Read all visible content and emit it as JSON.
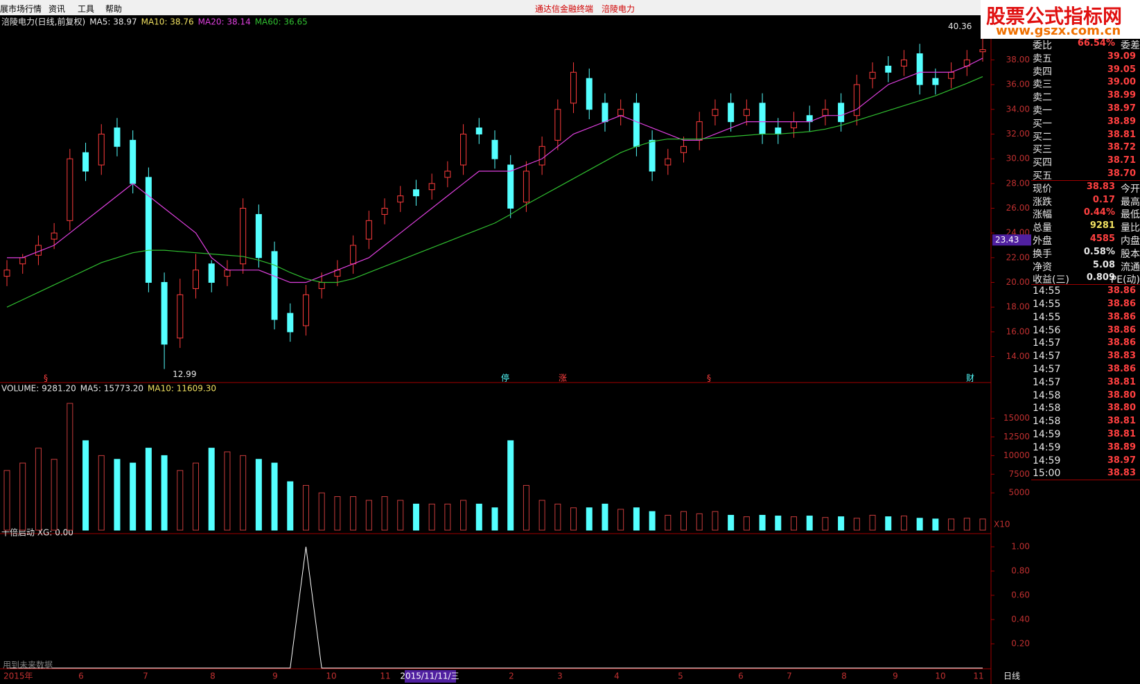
{
  "header": {
    "menu": [
      "展市场行情",
      "资讯",
      "工具",
      "帮助"
    ],
    "title": "通达信金融终端",
    "stock": "涪陵电力",
    "watermark": [
      "股票公式指标网",
      "www.gszx.com.cn"
    ]
  },
  "chart_data": [
    {
      "type": "candlestick",
      "name": "涪陵电力(日线,前复权)",
      "legend": [
        {
          "label": "MA5: 38.97",
          "color": "#e8e8e8"
        },
        {
          "label": "MA10: 38.76",
          "color": "#f0e060"
        },
        {
          "label": "MA20: 38.14",
          "color": "#e040e0"
        },
        {
          "label": "MA60: 36.65",
          "color": "#30c030"
        }
      ],
      "open": [
        20.5,
        21.5,
        22.2,
        23.5,
        25,
        30.5,
        29.5,
        32.5,
        31.5,
        28.5,
        20,
        15.5,
        19.5,
        21.5,
        20.5,
        21.5,
        25.5,
        22.5,
        17.5,
        16.5,
        19.5,
        20.5,
        21.5,
        23.5,
        25.5,
        26.5,
        27.5,
        27.5,
        28.5,
        29.5,
        32.5,
        31.5,
        29.5,
        26.5,
        29.5,
        31.5,
        34.5,
        36.5,
        34.5,
        33.5,
        34.5,
        31.5,
        29.5,
        30.5,
        31.5,
        33.5,
        34.5,
        33.5,
        34.5,
        32.5,
        32.5,
        33.5,
        33.5,
        34.5,
        33.5,
        36.5,
        37.5,
        37.5,
        38.5,
        36.5,
        36.5,
        37.5,
        38.66
      ],
      "high": [
        21.8,
        22.3,
        23.8,
        24.8,
        30.8,
        31.3,
        32.8,
        33.3,
        32.3,
        29.3,
        20.8,
        20.3,
        22.3,
        21.8,
        21.8,
        26.8,
        26.3,
        23.3,
        18.3,
        19.8,
        20.8,
        21.8,
        23.8,
        25.8,
        26.8,
        27.8,
        28.3,
        28.8,
        29.8,
        32.8,
        33.3,
        32.3,
        30.3,
        29.8,
        31.8,
        34.8,
        37.8,
        37.3,
        35.3,
        34.8,
        35.3,
        32.3,
        30.8,
        31.8,
        33.8,
        34.8,
        35.3,
        34.8,
        35.3,
        33.3,
        33.8,
        34.3,
        34.8,
        35.3,
        36.8,
        37.8,
        38.3,
        38.8,
        39.3,
        37.3,
        37.8,
        38.8,
        40.36
      ],
      "low": [
        19.7,
        20.7,
        21.4,
        22.7,
        24.2,
        28.2,
        28.7,
        30.2,
        27.2,
        19.2,
        12.99,
        14.7,
        18.7,
        19.2,
        19.7,
        20.7,
        21.2,
        16.2,
        15.2,
        15.7,
        18.7,
        19.7,
        20.7,
        22.7,
        24.7,
        25.7,
        26.2,
        26.7,
        27.7,
        28.7,
        31.2,
        29.2,
        25.2,
        25.7,
        28.7,
        30.7,
        33.7,
        33.2,
        32.2,
        32.7,
        30.2,
        28.2,
        28.7,
        29.7,
        30.7,
        32.7,
        32.2,
        32.7,
        31.2,
        31.2,
        31.7,
        32.2,
        32.7,
        32.2,
        32.7,
        35.7,
        36.2,
        36.7,
        35.2,
        35.2,
        35.7,
        36.7,
        37.86
      ],
      "close": [
        21,
        22,
        23,
        24,
        30,
        29,
        32,
        31,
        28,
        20,
        15,
        19,
        21,
        20,
        21,
        26,
        22,
        17,
        16,
        19,
        20,
        21,
        23,
        25,
        26,
        27,
        27,
        28,
        29,
        32,
        32,
        30,
        26,
        29,
        31,
        34,
        37,
        34,
        33,
        34,
        31,
        29,
        30,
        31,
        33,
        34,
        33,
        34,
        32,
        32,
        33,
        33,
        34,
        33,
        36,
        37,
        37,
        38,
        36,
        36,
        37,
        38,
        38.83
      ],
      "series": [
        {
          "color": "#e040e0",
          "values": [
            22,
            22,
            22.5,
            23,
            24,
            25,
            26,
            27,
            28,
            27,
            26,
            25,
            24,
            22,
            21,
            21,
            21,
            20.5,
            20,
            20,
            20.5,
            21,
            21.5,
            22,
            23,
            24,
            25,
            26,
            27,
            28,
            29,
            29,
            29,
            29.5,
            30,
            31,
            32,
            32.5,
            33,
            33.5,
            33,
            32.5,
            32,
            31.5,
            31.5,
            32,
            32.5,
            33,
            33,
            33,
            33,
            33,
            33.5,
            33.5,
            34,
            35,
            36,
            36.5,
            37,
            37,
            37,
            37.5,
            38.14
          ]
        },
        {
          "color": "#30c030",
          "values": [
            18,
            18.6,
            19.2,
            19.8,
            20.4,
            21,
            21.6,
            22,
            22.4,
            22.6,
            22.6,
            22.5,
            22.4,
            22.3,
            22.2,
            22.1,
            21.8,
            21.4,
            20.8,
            20.3,
            20,
            20,
            20.3,
            20.8,
            21.3,
            21.8,
            22.3,
            22.8,
            23.3,
            23.8,
            24.3,
            24.8,
            25.5,
            26.3,
            27,
            27.7,
            28.4,
            29.1,
            29.8,
            30.5,
            31,
            31.4,
            31.6,
            31.6,
            31.6,
            31.7,
            31.8,
            31.9,
            32,
            32,
            32.1,
            32.2,
            32.4,
            32.7,
            33.1,
            33.5,
            33.9,
            34.3,
            34.7,
            35.1,
            35.6,
            36.1,
            36.65
          ]
        }
      ],
      "annotations": [
        40.36,
        12.99
      ],
      "price_tag": 23.43,
      "markers": [
        "§",
        "停",
        "涨",
        "§",
        "财"
      ],
      "ylim": [
        11.9,
        41.5
      ],
      "yticks": [
        {
          "value": 14,
          "label": "14.00"
        },
        {
          "value": 16,
          "label": "16.00"
        },
        {
          "value": 18,
          "label": "18.00"
        },
        {
          "value": 20,
          "label": "20.00"
        },
        {
          "value": 22,
          "label": "22.00"
        },
        {
          "value": 24,
          "label": "24.00"
        },
        {
          "value": 26,
          "label": "26.00"
        },
        {
          "value": 28,
          "label": "28.00"
        },
        {
          "value": 30,
          "label": "30.00"
        },
        {
          "value": 32,
          "label": "32.00"
        },
        {
          "value": 34,
          "label": "34.00"
        },
        {
          "value": 36,
          "label": "36.00"
        },
        {
          "value": 38,
          "label": "38.00"
        }
      ]
    },
    {
      "type": "bar",
      "legend": [
        {
          "label": "VOLUME: 9281.20",
          "color": "#e8e8e8"
        },
        {
          "label": "MA5: 15773.20",
          "color": "#e8e8e8"
        },
        {
          "label": "MA10: 11609.30",
          "color": "#f0e060"
        }
      ],
      "values": [
        8000,
        9000,
        11000,
        9500,
        17000,
        12000,
        10000,
        9500,
        9000,
        11000,
        10000,
        8000,
        9000,
        11000,
        10500,
        10000,
        9500,
        9000,
        6500,
        6000,
        5000,
        4500,
        4500,
        4000,
        4500,
        4000,
        3500,
        3500,
        3500,
        4000,
        3500,
        3000,
        12000,
        6000,
        4000,
        3500,
        3000,
        3000,
        3500,
        2800,
        3000,
        2500,
        2000,
        2500,
        2200,
        2500,
        2000,
        1800,
        2000,
        1900,
        1800,
        1900,
        1700,
        1800,
        1600,
        2000,
        1800,
        1900,
        1600,
        1500,
        1500,
        1600,
        1500
      ],
      "scale_note": "X10",
      "ylim": [
        0,
        19700
      ],
      "yticks": [
        5000,
        7500,
        10000,
        12500,
        15000
      ]
    },
    {
      "type": "line",
      "legend": [
        {
          "label": "十倍启动 XG: 0.00",
          "color": "#e8e8e8"
        }
      ],
      "color": "#ffffff",
      "values": [
        0,
        0,
        0,
        0,
        0,
        0,
        0,
        0,
        0,
        0,
        0,
        0,
        0,
        0,
        0,
        0,
        0,
        0,
        0,
        1,
        0,
        0,
        0,
        0,
        0,
        0,
        0,
        0,
        0,
        0,
        0,
        0,
        0,
        0,
        0,
        0,
        0,
        0,
        0,
        0,
        0,
        0,
        0,
        0,
        0,
        0,
        0,
        0,
        0,
        0,
        0,
        0,
        0,
        0,
        0,
        0,
        0,
        0,
        0,
        0,
        0,
        0,
        0
      ],
      "note": "用到未来数据",
      "ylim": [
        0,
        1.08
      ],
      "yticks": [
        {
          "value": 0.2,
          "label": "0.20"
        },
        {
          "value": 0.4,
          "label": "0.40"
        },
        {
          "value": 0.6,
          "label": "0.60"
        },
        {
          "value": 0.8,
          "label": "0.80"
        },
        {
          "value": 1,
          "label": "1.00"
        }
      ]
    }
  ],
  "date_axis": {
    "labels": [
      "2015年",
      "6",
      "7",
      "8",
      "9",
      "10",
      "11",
      "2015/11/11/三",
      "2",
      "3",
      "4",
      "5",
      "6",
      "7",
      "8",
      "9",
      "10",
      "11"
    ],
    "period": "日线"
  },
  "quote": {
    "book": [
      {
        "label": "委比",
        "value": "66.54%",
        "side": "委差",
        "color": "#ff4040"
      },
      {
        "label": "卖五",
        "value": "39.09",
        "color": "#ff4040"
      },
      {
        "label": "卖四",
        "value": "39.05",
        "color": "#ff4040"
      },
      {
        "label": "卖三",
        "value": "39.00",
        "color": "#ff4040"
      },
      {
        "label": "卖二",
        "value": "38.99",
        "color": "#ff4040"
      },
      {
        "label": "卖一",
        "value": "38.97",
        "color": "#ff4040"
      },
      {
        "label": "买一",
        "value": "38.89",
        "color": "#ff4040"
      },
      {
        "label": "买二",
        "value": "38.81",
        "color": "#ff4040"
      },
      {
        "label": "买三",
        "value": "38.72",
        "color": "#ff4040"
      },
      {
        "label": "买四",
        "value": "38.71",
        "color": "#ff4040"
      },
      {
        "label": "买五",
        "value": "38.70",
        "color": "#ff4040"
      }
    ],
    "fields": [
      {
        "label": "现价",
        "value": "38.83",
        "side": "今开",
        "color": "#ff4040"
      },
      {
        "label": "涨跌",
        "value": "0.17",
        "side": "最高",
        "color": "#ff4040"
      },
      {
        "label": "涨幅",
        "value": "0.44%",
        "side": "最低",
        "color": "#ff4040"
      },
      {
        "label": "总量",
        "value": "9281",
        "side": "量比",
        "color": "#f0e060"
      },
      {
        "label": "外盘",
        "value": "4585",
        "side": "内盘",
        "color": "#ff4040"
      },
      {
        "label": "换手",
        "value": "0.58%",
        "side": "股本",
        "color": "#e8e8e8"
      },
      {
        "label": "净资",
        "value": "5.08",
        "side": "流通",
        "color": "#e8e8e8"
      },
      {
        "label": "收益(三)",
        "value": "0.809",
        "side": "PE(动)",
        "color": "#e8e8e8"
      }
    ],
    "ticks": [
      {
        "label": "14:55",
        "value": "38.86",
        "color": "#ff4040"
      },
      {
        "label": "14:55",
        "value": "38.86",
        "color": "#ff4040"
      },
      {
        "label": "14:55",
        "value": "38.86",
        "color": "#ff4040"
      },
      {
        "label": "14:56",
        "value": "38.86",
        "color": "#ff4040"
      },
      {
        "label": "14:57",
        "value": "38.86",
        "color": "#ff4040"
      },
      {
        "label": "14:57",
        "value": "38.83",
        "color": "#ff4040"
      },
      {
        "label": "14:57",
        "value": "38.86",
        "color": "#ff4040"
      },
      {
        "label": "14:57",
        "value": "38.81",
        "color": "#ff4040"
      },
      {
        "label": "14:58",
        "value": "38.80",
        "color": "#ff4040"
      },
      {
        "label": "14:58",
        "value": "38.80",
        "color": "#ff4040"
      },
      {
        "label": "14:58",
        "value": "38.81",
        "color": "#ff4040"
      },
      {
        "label": "14:59",
        "value": "38.81",
        "color": "#ff4040"
      },
      {
        "label": "14:59",
        "value": "38.89",
        "color": "#ff4040"
      },
      {
        "label": "14:59",
        "value": "38.97",
        "color": "#ff4040"
      },
      {
        "label": "15:00",
        "value": "38.83",
        "color": "#ff4040"
      }
    ]
  }
}
